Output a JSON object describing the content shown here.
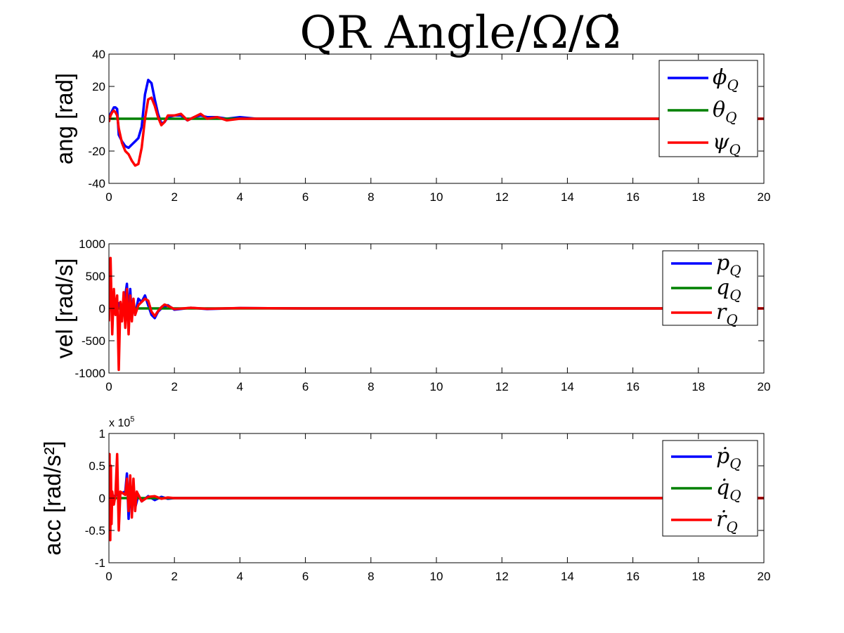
{
  "figure": {
    "title": "QR Angle/Ω/Ω̇"
  },
  "colors": {
    "series_1": "#0000ff",
    "series_2": "#008000",
    "series_3": "#ff0000",
    "axes": "#000000",
    "background": "#ffffff"
  },
  "chart_data": [
    {
      "type": "line",
      "ylabel": "ang [rad]",
      "xlabel": "",
      "xlim": [
        0,
        20
      ],
      "ylim": [
        -40,
        40
      ],
      "xticks": [
        0,
        2,
        4,
        6,
        8,
        10,
        12,
        14,
        16,
        18,
        20
      ],
      "yticks": [
        -40,
        -20,
        0,
        20,
        40
      ],
      "legend_position": "top-right",
      "legend": [
        {
          "symbol": "ϕ",
          "sub": "Q"
        },
        {
          "symbol": "θ",
          "sub": "Q"
        },
        {
          "symbol": "ψ",
          "sub": "Q"
        }
      ],
      "series": [
        {
          "x": [
            0,
            0.05,
            0.1,
            0.15,
            0.2,
            0.25,
            0.3,
            0.4,
            0.5,
            0.6,
            0.7,
            0.8,
            0.9,
            1.0,
            1.1,
            1.2,
            1.3,
            1.4,
            1.5,
            1.6,
            1.7,
            1.8,
            2.0,
            2.2,
            2.4,
            2.6,
            2.8,
            3.0,
            3.3,
            3.6,
            4.0,
            4.5,
            5.0,
            6.0,
            8.0,
            10.0,
            12.0,
            14.0,
            16.0,
            18.0,
            20.0
          ],
          "y": [
            0,
            3,
            5,
            7,
            7,
            6,
            -10,
            -14,
            -17,
            -18,
            -16,
            -14,
            -12,
            -5,
            15,
            24,
            22,
            12,
            3,
            -3,
            -2,
            1,
            2,
            2,
            -1,
            1,
            2,
            1,
            1,
            0,
            1,
            0,
            0,
            0,
            0,
            0,
            0,
            0,
            0,
            0,
            0
          ]
        },
        {
          "x": [
            0,
            20
          ],
          "y": [
            0,
            0
          ]
        },
        {
          "x": [
            0,
            0.05,
            0.1,
            0.15,
            0.2,
            0.25,
            0.3,
            0.4,
            0.5,
            0.6,
            0.7,
            0.8,
            0.9,
            1.0,
            1.1,
            1.2,
            1.3,
            1.4,
            1.5,
            1.6,
            1.7,
            1.8,
            2.0,
            2.2,
            2.4,
            2.6,
            2.8,
            3.0,
            3.3,
            3.6,
            4.0,
            4.5,
            5.0,
            6.0,
            8.0,
            10.0,
            12.0,
            14.0,
            16.0,
            18.0,
            20.0
          ],
          "y": [
            -2,
            2,
            4,
            5,
            4,
            2,
            -6,
            -15,
            -20,
            -22,
            -26,
            -29,
            -28,
            -18,
            0,
            12,
            13,
            8,
            1,
            -4,
            -2,
            2,
            2,
            3,
            -1,
            1,
            3,
            0,
            1,
            -1,
            0,
            0,
            0,
            0,
            0,
            0,
            0,
            0,
            0,
            0,
            0
          ]
        }
      ]
    },
    {
      "type": "line",
      "ylabel": "vel [rad/s]",
      "xlabel": "",
      "xlim": [
        0,
        20
      ],
      "ylim": [
        -1000,
        1000
      ],
      "xticks": [
        0,
        2,
        4,
        6,
        8,
        10,
        12,
        14,
        16,
        18,
        20
      ],
      "yticks": [
        -1000,
        -500,
        0,
        500,
        1000
      ],
      "legend_position": "top-right",
      "legend": [
        {
          "symbol": "p",
          "sub": "Q"
        },
        {
          "symbol": "q",
          "sub": "Q"
        },
        {
          "symbol": "r",
          "sub": "Q"
        }
      ],
      "series": [
        {
          "x": [
            0,
            0.1,
            0.2,
            0.3,
            0.4,
            0.5,
            0.55,
            0.6,
            0.65,
            0.7,
            0.75,
            0.8,
            0.9,
            1.0,
            1.1,
            1.2,
            1.3,
            1.4,
            1.5,
            1.6,
            1.8,
            2.0,
            2.5,
            3.0,
            4.0,
            6.0,
            10.0,
            15.0,
            20.0
          ],
          "y": [
            0,
            50,
            -50,
            80,
            -100,
            200,
            380,
            -200,
            300,
            -150,
            120,
            -100,
            150,
            100,
            200,
            50,
            -100,
            -150,
            -50,
            0,
            50,
            -20,
            10,
            -10,
            5,
            0,
            0,
            0,
            0
          ]
        },
        {
          "x": [
            0,
            20
          ],
          "y": [
            0,
            0
          ]
        },
        {
          "x": [
            0,
            0.05,
            0.1,
            0.15,
            0.2,
            0.25,
            0.3,
            0.35,
            0.4,
            0.45,
            0.5,
            0.55,
            0.6,
            0.65,
            0.7,
            0.75,
            0.8,
            0.9,
            1.0,
            1.1,
            1.2,
            1.3,
            1.4,
            1.5,
            1.6,
            1.7,
            1.8,
            2.0,
            2.5,
            3.0,
            4.0,
            6.0,
            10.0,
            15.0,
            20.0
          ],
          "y": [
            -200,
            780,
            -400,
            300,
            -100,
            200,
            -950,
            100,
            -200,
            250,
            -300,
            300,
            -400,
            200,
            -200,
            150,
            -100,
            50,
            100,
            150,
            120,
            -50,
            -120,
            -40,
            20,
            60,
            40,
            -10,
            10,
            -5,
            5,
            0,
            0,
            0,
            0
          ]
        }
      ]
    },
    {
      "type": "line",
      "ylabel": "acc [rad/s²]",
      "xlabel": "",
      "scale_label": "x 10",
      "scale_exponent": "5",
      "xlim": [
        0,
        20
      ],
      "ylim": [
        -1,
        1
      ],
      "xticks": [
        0,
        2,
        4,
        6,
        8,
        10,
        12,
        14,
        16,
        18,
        20
      ],
      "yticks": [
        -1,
        -0.5,
        0,
        0.5,
        1
      ],
      "legend_position": "top-right",
      "legend": [
        {
          "symbol": "ṗ",
          "sub": "Q"
        },
        {
          "symbol": "q̇",
          "sub": "Q"
        },
        {
          "symbol": "ṙ",
          "sub": "Q"
        }
      ],
      "series": [
        {
          "x": [
            0,
            0.5,
            0.55,
            0.6,
            0.65,
            0.7,
            0.75,
            0.8,
            0.9,
            1.0,
            1.2,
            1.4,
            1.6,
            1.8,
            2.0,
            3.0,
            5.0,
            10.0,
            20.0
          ],
          "y": [
            0,
            0.1,
            0.38,
            -0.32,
            0.3,
            -0.25,
            0.2,
            -0.15,
            0.05,
            -0.05,
            0.03,
            -0.03,
            0.02,
            -0.01,
            0,
            0,
            0,
            0,
            0
          ]
        },
        {
          "x": [
            0,
            20
          ],
          "y": [
            0,
            0
          ]
        },
        {
          "x": [
            0,
            0.02,
            0.04,
            0.06,
            0.08,
            0.1,
            0.15,
            0.2,
            0.25,
            0.3,
            0.35,
            0.5,
            0.55,
            0.6,
            0.65,
            0.7,
            0.75,
            0.8,
            0.85,
            1.0,
            1.2,
            1.4,
            1.6,
            1.8,
            2.0,
            3.0,
            5.0,
            10.0,
            20.0
          ],
          "y": [
            0,
            0.68,
            -0.65,
            0.5,
            -0.4,
            0.1,
            -0.1,
            0.05,
            0.68,
            -0.5,
            0.1,
            0.05,
            0.3,
            -0.2,
            0.35,
            -0.3,
            0.3,
            -0.2,
            0.1,
            -0.05,
            0.02,
            0.03,
            -0.01,
            0.01,
            0,
            0,
            0,
            0,
            0
          ]
        }
      ]
    }
  ]
}
